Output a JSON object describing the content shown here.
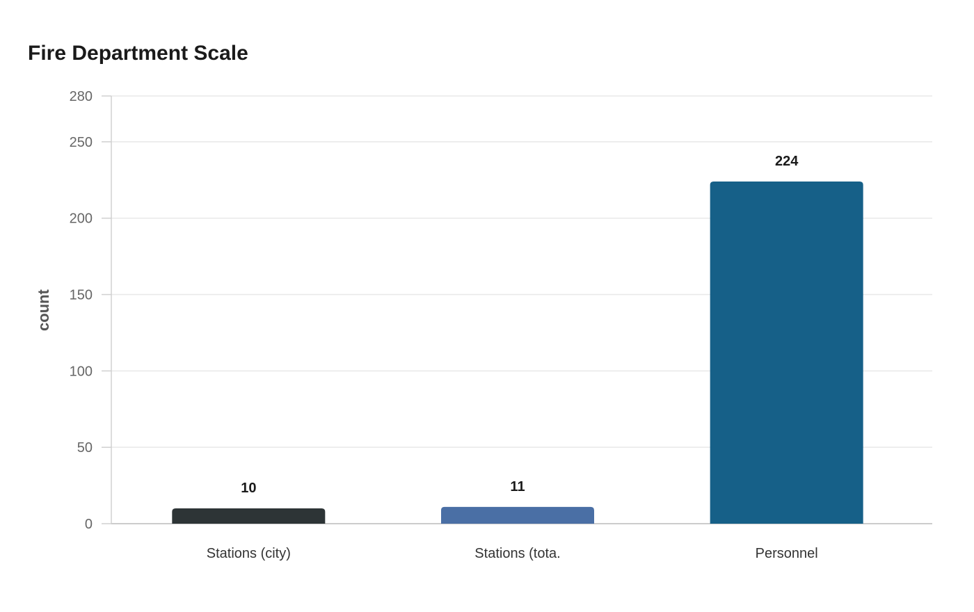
{
  "chart_data": {
    "type": "bar",
    "title": "Fire Department Scale",
    "xlabel": "",
    "ylabel": "count",
    "categories": [
      "Stations (city)",
      "Stations (tota.",
      "Personnel"
    ],
    "values": [
      10,
      11,
      224
    ],
    "colors": [
      "#2d3436",
      "#4a6fa5",
      "#166088"
    ],
    "ylim": [
      0,
      280
    ],
    "yticks": [
      0,
      50,
      100,
      150,
      200,
      250,
      280
    ],
    "grid": true,
    "legend": "none"
  }
}
